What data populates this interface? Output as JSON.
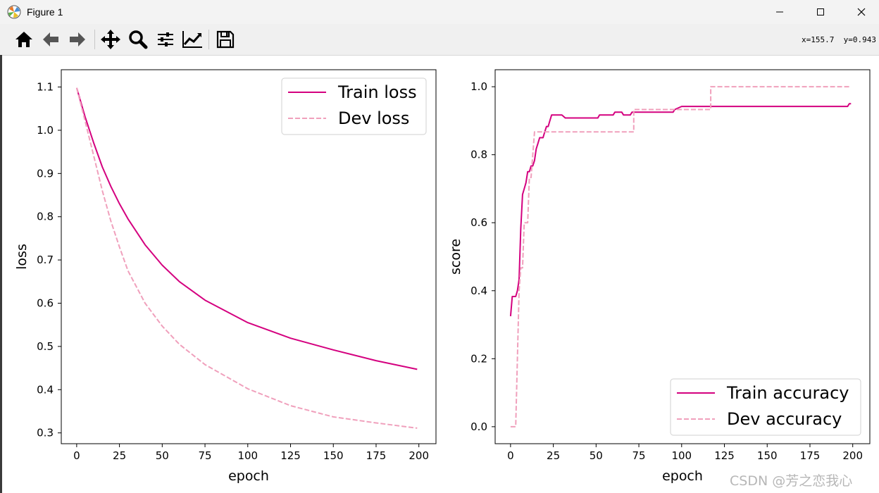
{
  "window": {
    "title": "Figure 1",
    "coords_readout": "x=155.7  y=0.943"
  },
  "toolbar": {
    "tools": [
      {
        "name": "home-icon"
      },
      {
        "name": "back-arrow-icon"
      },
      {
        "name": "forward-arrow-icon"
      },
      {
        "name": "pan-move-icon"
      },
      {
        "name": "zoom-magnifier-icon"
      },
      {
        "name": "subplots-config-icon"
      },
      {
        "name": "edit-axes-icon"
      },
      {
        "name": "save-figure-icon"
      }
    ]
  },
  "colors": {
    "train": "#d4007f",
    "dev": "#f0a0bc",
    "axes": "#000000"
  },
  "watermark": "CSDN @芳之恋我心",
  "chart_data": [
    {
      "type": "line",
      "xlabel": "epoch",
      "ylabel": "loss",
      "xlim": [
        -9,
        210
      ],
      "ylim": [
        0.275,
        1.14
      ],
      "xticks": [
        0,
        25,
        50,
        75,
        100,
        125,
        150,
        175,
        200
      ],
      "yticks": [
        0.3,
        0.4,
        0.5,
        0.6,
        0.7,
        0.8,
        0.9,
        1.0,
        1.1
      ],
      "xtick_labels": [
        "0",
        "25",
        "50",
        "75",
        "100",
        "125",
        "150",
        "175",
        "200"
      ],
      "ytick_labels": [
        "0.3",
        "0.4",
        "0.5",
        "0.6",
        "0.7",
        "0.8",
        "0.9",
        "1.0",
        "1.1"
      ],
      "legend_loc": "upper-right",
      "series": [
        {
          "name": "Train loss",
          "style": "solid",
          "x": [
            0,
            5,
            10,
            15,
            20,
            25,
            30,
            40,
            50,
            60,
            75,
            100,
            125,
            150,
            175,
            199
          ],
          "y": [
            1.098,
            1.03,
            0.97,
            0.915,
            0.87,
            0.83,
            0.795,
            0.735,
            0.688,
            0.65,
            0.607,
            0.555,
            0.519,
            0.492,
            0.467,
            0.447
          ]
        },
        {
          "name": "Dev loss",
          "style": "dashed",
          "x": [
            0,
            5,
            10,
            15,
            20,
            25,
            30,
            40,
            50,
            60,
            75,
            100,
            125,
            150,
            175,
            199
          ],
          "y": [
            1.098,
            1.02,
            0.94,
            0.86,
            0.79,
            0.73,
            0.675,
            0.6,
            0.547,
            0.505,
            0.458,
            0.402,
            0.363,
            0.337,
            0.323,
            0.311
          ]
        }
      ]
    },
    {
      "type": "line",
      "xlabel": "epoch",
      "ylabel": "score",
      "xlim": [
        -9,
        210
      ],
      "ylim": [
        -0.05,
        1.05
      ],
      "xticks": [
        0,
        25,
        50,
        75,
        100,
        125,
        150,
        175,
        200
      ],
      "yticks": [
        0.0,
        0.2,
        0.4,
        0.6,
        0.8,
        1.0
      ],
      "xtick_labels": [
        "0",
        "25",
        "50",
        "75",
        "100",
        "125",
        "150",
        "175",
        "200"
      ],
      "ytick_labels": [
        "0.0",
        "0.2",
        "0.4",
        "0.6",
        "0.8",
        "1.0"
      ],
      "legend_loc": "lower-right",
      "series": [
        {
          "name": "Train accuracy",
          "style": "solid",
          "x": [
            0,
            1,
            3,
            4,
            5,
            6,
            7,
            8,
            9,
            10,
            11,
            12,
            13,
            14,
            15,
            16,
            17,
            18,
            19,
            20,
            21,
            22,
            23,
            24,
            25,
            26,
            27,
            28,
            29,
            30,
            32,
            33,
            35,
            40,
            45,
            50,
            51,
            52,
            55,
            57,
            58,
            60,
            61,
            63,
            65,
            66,
            68,
            70,
            71,
            73,
            75,
            80,
            90,
            95,
            96,
            100,
            110,
            120,
            130,
            140,
            150,
            160,
            170,
            180,
            190,
            197,
            198,
            199
          ],
          "y": [
            0.325,
            0.383,
            0.383,
            0.4,
            0.433,
            0.583,
            0.683,
            0.7,
            0.717,
            0.75,
            0.75,
            0.767,
            0.767,
            0.783,
            0.817,
            0.833,
            0.85,
            0.85,
            0.85,
            0.867,
            0.883,
            0.883,
            0.9,
            0.917,
            0.917,
            0.917,
            0.917,
            0.917,
            0.917,
            0.917,
            0.908,
            0.908,
            0.908,
            0.908,
            0.908,
            0.908,
            0.908,
            0.917,
            0.917,
            0.917,
            0.917,
            0.917,
            0.925,
            0.925,
            0.925,
            0.917,
            0.917,
            0.917,
            0.925,
            0.925,
            0.925,
            0.925,
            0.925,
            0.925,
            0.933,
            0.942,
            0.942,
            0.942,
            0.942,
            0.942,
            0.942,
            0.942,
            0.942,
            0.942,
            0.942,
            0.942,
            0.95,
            0.95
          ]
        },
        {
          "name": "Dev accuracy",
          "style": "dashed",
          "x": [
            0,
            3,
            3,
            5,
            6,
            7,
            8,
            9,
            10,
            11,
            12,
            14,
            15,
            20,
            30,
            40,
            50,
            60,
            72,
            72,
            80,
            90,
            97,
            97,
            100,
            110,
            117,
            117,
            130,
            150,
            170,
            190,
            199
          ],
          "y": [
            0.0,
            0.0,
            0.0,
            0.4,
            0.467,
            0.467,
            0.6,
            0.6,
            0.6,
            0.733,
            0.733,
            0.867,
            0.867,
            0.867,
            0.867,
            0.867,
            0.867,
            0.867,
            0.867,
            0.933,
            0.933,
            0.933,
            0.933,
            0.933,
            0.933,
            0.933,
            0.933,
            1.0,
            1.0,
            1.0,
            1.0,
            1.0,
            1.0
          ]
        }
      ]
    }
  ]
}
